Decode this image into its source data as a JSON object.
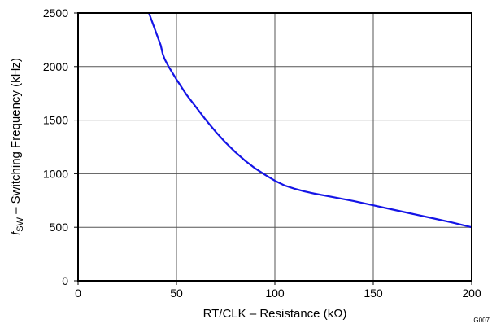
{
  "chart_data": {
    "type": "line",
    "xlabel": "RT/CLK – Resistance (kΩ)",
    "ylabel_symbol": "f",
    "ylabel_subscript": "SW",
    "ylabel_rest": " – Switching Frequency (kHz)",
    "xlim": [
      0,
      200
    ],
    "ylim": [
      0,
      2500
    ],
    "xticks": [
      "0",
      "50",
      "100",
      "150",
      "200"
    ],
    "yticks": [
      "0",
      "500",
      "1000",
      "1500",
      "2000",
      "2500"
    ],
    "grid": true,
    "line_color": "#1414e6",
    "figure_code": "G007",
    "series": [
      {
        "x": [
          36,
          38,
          40,
          42,
          43,
          44,
          46,
          50,
          55,
          60,
          65,
          70,
          75,
          80,
          85,
          90,
          95,
          100,
          105,
          110,
          115,
          120,
          130,
          140,
          150,
          160,
          170,
          180,
          190,
          200
        ],
        "y": [
          2500,
          2400,
          2300,
          2200,
          2120,
          2070,
          2000,
          1880,
          1740,
          1620,
          1500,
          1390,
          1290,
          1200,
          1120,
          1050,
          990,
          935,
          890,
          860,
          835,
          815,
          780,
          745,
          705,
          665,
          625,
          585,
          545,
          500
        ]
      }
    ]
  }
}
